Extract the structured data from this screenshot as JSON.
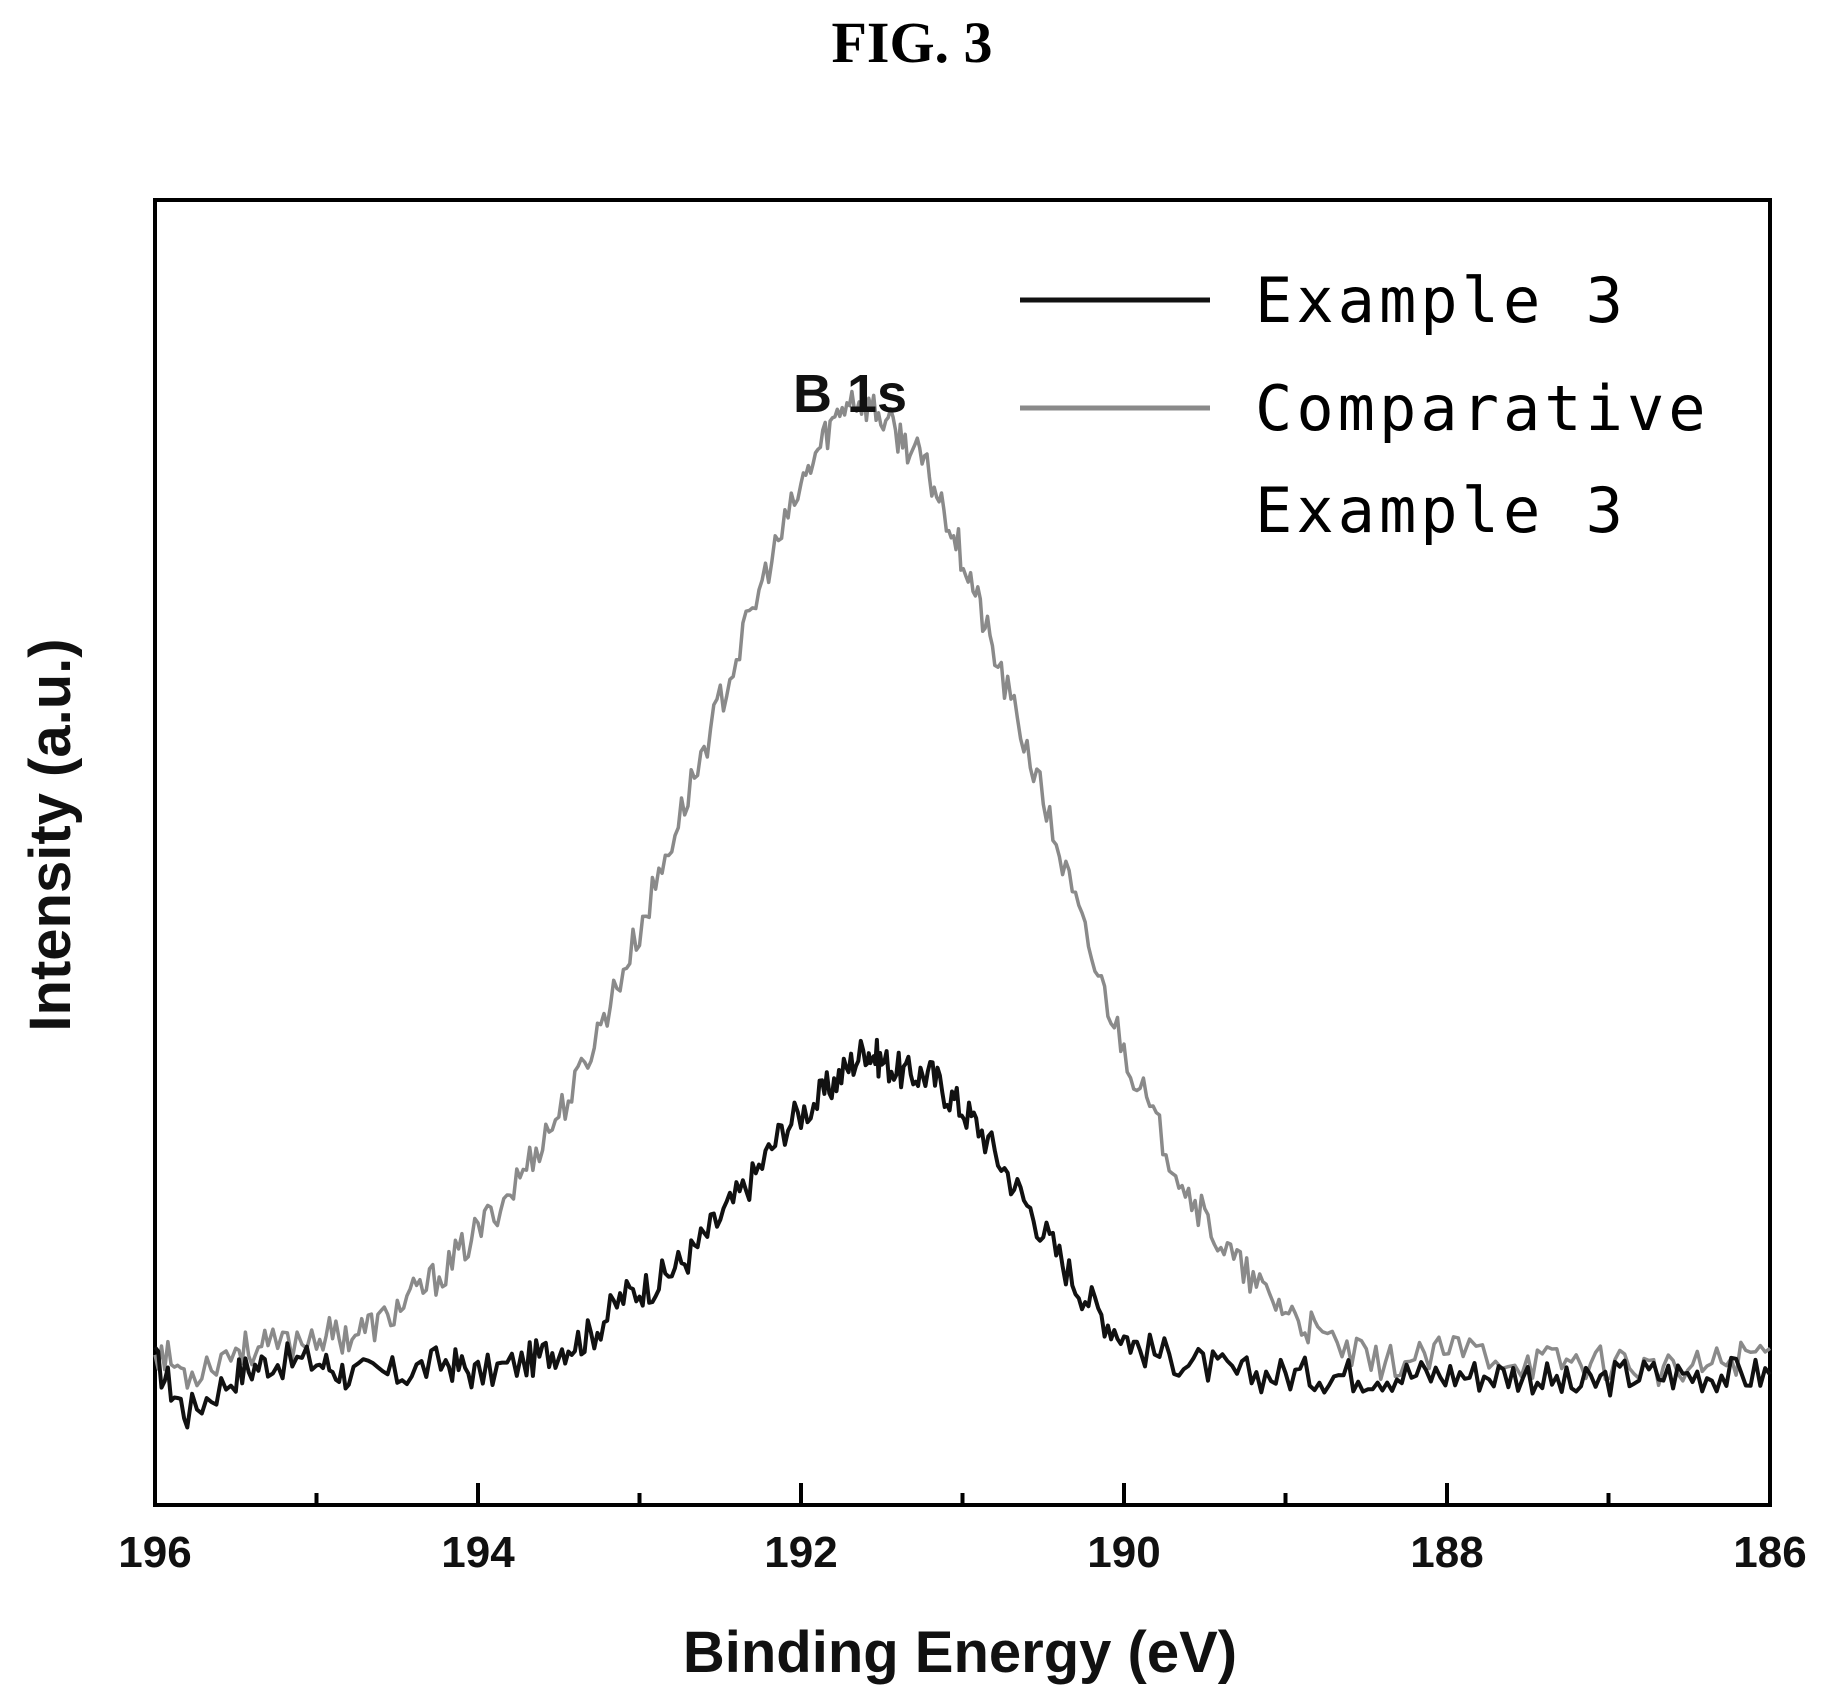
{
  "figure_label": "FIG. 3",
  "chart_data": {
    "type": "line",
    "title": "",
    "annotation": "B 1s",
    "xlabel": "Binding Energy (eV)",
    "ylabel": "Intensity (a.u.)",
    "xlim": [
      196,
      186
    ],
    "x_reversed": true,
    "ylim": [
      0,
      1
    ],
    "y_ticks_shown": false,
    "grid": false,
    "legend_position": "top-right",
    "x_major_ticks": [
      196,
      194,
      192,
      190,
      188,
      186
    ],
    "x_tick_labels": [
      "196",
      "194",
      "192",
      "190",
      "188",
      "186"
    ],
    "x_minor_ticks": [
      195,
      193,
      191,
      189,
      187
    ],
    "series": [
      {
        "name": "Example 3",
        "color": "#111111",
        "points": [
          [
            196.0,
            0.11
          ],
          [
            195.8,
            0.07
          ],
          [
            195.5,
            0.1
          ],
          [
            195.3,
            0.11
          ],
          [
            195.0,
            0.11
          ],
          [
            194.8,
            0.1
          ],
          [
            194.5,
            0.1
          ],
          [
            194.2,
            0.11
          ],
          [
            194.0,
            0.1
          ],
          [
            193.7,
            0.11
          ],
          [
            193.5,
            0.12
          ],
          [
            193.3,
            0.13
          ],
          [
            193.1,
            0.16
          ],
          [
            192.9,
            0.17
          ],
          [
            192.7,
            0.19
          ],
          [
            192.5,
            0.22
          ],
          [
            192.3,
            0.25
          ],
          [
            192.1,
            0.29
          ],
          [
            191.9,
            0.31
          ],
          [
            191.75,
            0.33
          ],
          [
            191.6,
            0.35
          ],
          [
            191.5,
            0.34
          ],
          [
            191.35,
            0.33
          ],
          [
            191.2,
            0.33
          ],
          [
            191.05,
            0.31
          ],
          [
            190.9,
            0.29
          ],
          [
            190.7,
            0.25
          ],
          [
            190.5,
            0.21
          ],
          [
            190.3,
            0.17
          ],
          [
            190.1,
            0.14
          ],
          [
            189.9,
            0.12
          ],
          [
            189.6,
            0.11
          ],
          [
            189.3,
            0.1
          ],
          [
            189.0,
            0.1
          ],
          [
            188.7,
            0.1
          ],
          [
            188.4,
            0.1
          ],
          [
            188.1,
            0.1
          ],
          [
            187.8,
            0.1
          ],
          [
            187.5,
            0.1
          ],
          [
            187.2,
            0.09
          ],
          [
            186.9,
            0.1
          ],
          [
            186.6,
            0.1
          ],
          [
            186.3,
            0.1
          ],
          [
            186.0,
            0.1
          ]
        ]
      },
      {
        "name": "Comparative\nExample 3",
        "color": "#8a8a8a",
        "points": [
          [
            196.0,
            0.12
          ],
          [
            195.8,
            0.1
          ],
          [
            195.5,
            0.12
          ],
          [
            195.3,
            0.12
          ],
          [
            195.0,
            0.13
          ],
          [
            194.8,
            0.13
          ],
          [
            194.6,
            0.14
          ],
          [
            194.4,
            0.16
          ],
          [
            194.2,
            0.18
          ],
          [
            194.0,
            0.21
          ],
          [
            193.8,
            0.24
          ],
          [
            193.6,
            0.28
          ],
          [
            193.4,
            0.32
          ],
          [
            193.2,
            0.38
          ],
          [
            193.0,
            0.44
          ],
          [
            192.8,
            0.51
          ],
          [
            192.6,
            0.58
          ],
          [
            192.4,
            0.65
          ],
          [
            192.2,
            0.72
          ],
          [
            192.0,
            0.78
          ],
          [
            191.85,
            0.82
          ],
          [
            191.7,
            0.85
          ],
          [
            191.55,
            0.84
          ],
          [
            191.4,
            0.82
          ],
          [
            191.25,
            0.8
          ],
          [
            191.1,
            0.76
          ],
          [
            190.95,
            0.71
          ],
          [
            190.8,
            0.65
          ],
          [
            190.6,
            0.58
          ],
          [
            190.4,
            0.5
          ],
          [
            190.2,
            0.42
          ],
          [
            190.0,
            0.35
          ],
          [
            189.8,
            0.29
          ],
          [
            189.6,
            0.24
          ],
          [
            189.4,
            0.2
          ],
          [
            189.2,
            0.17
          ],
          [
            189.0,
            0.15
          ],
          [
            188.8,
            0.13
          ],
          [
            188.5,
            0.11
          ],
          [
            188.2,
            0.11
          ],
          [
            187.9,
            0.12
          ],
          [
            187.5,
            0.11
          ],
          [
            187.2,
            0.11
          ],
          [
            186.9,
            0.11
          ],
          [
            186.6,
            0.1
          ],
          [
            186.3,
            0.11
          ],
          [
            186.0,
            0.12
          ]
        ]
      }
    ]
  }
}
